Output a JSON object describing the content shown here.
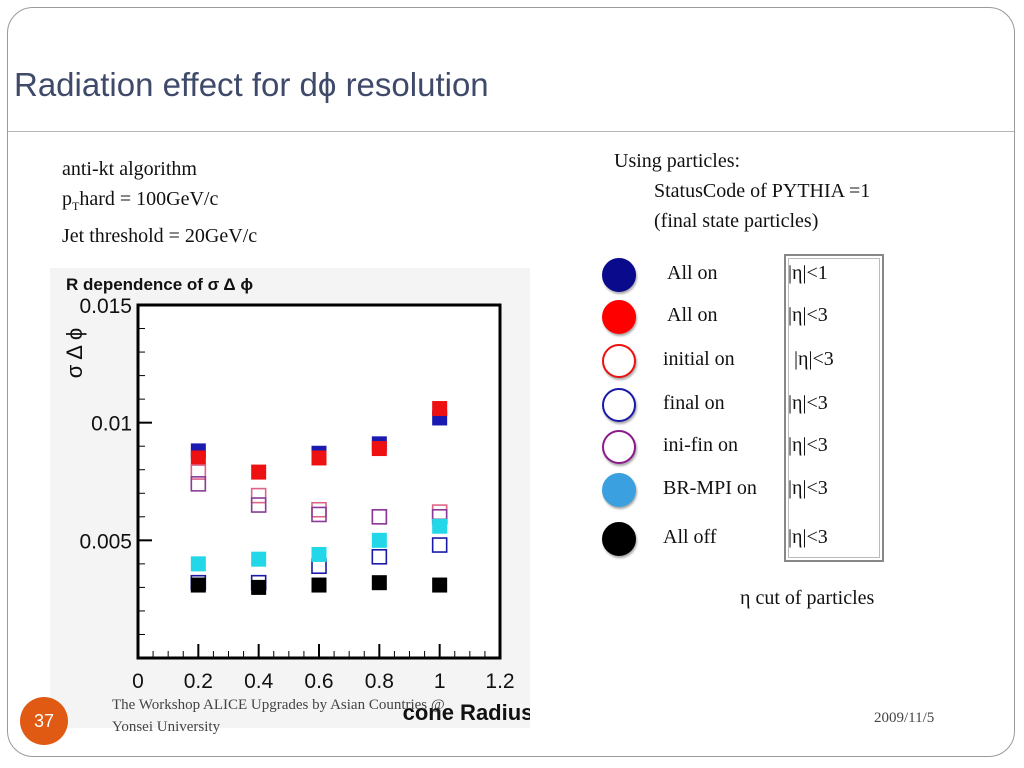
{
  "slide": {
    "title": "Radiation effect for dϕ resolution",
    "info_lines": [
      "anti-kt algorithm",
      "hard = 100GeV/c",
      "Jet threshold = 20GeV/c"
    ],
    "pt_symbol": "p",
    "pt_sub": "T",
    "using": [
      "Using particles:",
      "StatusCode of PYTHIA =1",
      "(final state particles)"
    ],
    "eta_note": "η cut of particles",
    "slide_number": "37",
    "footer_line1": "The Workshop ALICE Upgrades by Asian Countries @",
    "footer_line2": "Yonsei University",
    "date": "2009/11/5"
  },
  "legend": [
    {
      "label": "All on",
      "cut": "|η|<1",
      "fill": "#0a0a8c",
      "stroke": "#0a0a8c"
    },
    {
      "label": "All on",
      "cut": "|η|<3",
      "fill": "#ff0000",
      "stroke": "#ff0000"
    },
    {
      "label": "initial on",
      "cut": "|η|<3",
      "fill": "#ffffff",
      "stroke": "#ee1111"
    },
    {
      "label": "final   on",
      "cut": "|η|<3",
      "fill": "#ffffff",
      "stroke": "#1a1aa8"
    },
    {
      "label": "ini-fin  on",
      "cut": "|η|<3",
      "fill": "#ffffff",
      "stroke": "#8b1a8b"
    },
    {
      "label": "BR-MPI  on",
      "cut": "|η|<3",
      "fill": "#3aa0e0",
      "stroke": "#3aa0e0"
    },
    {
      "label": "All off",
      "cut": "|η|<3",
      "fill": "#000000",
      "stroke": "#000000"
    }
  ],
  "chart_data": {
    "type": "scatter",
    "title": "R dependence of σ Δ ϕ",
    "xlabel": "cone Radius",
    "ylabel": "σ Δ ϕ",
    "xlim": [
      0,
      1.2
    ],
    "ylim": [
      0,
      0.015
    ],
    "x_ticks": [
      "0",
      "0.2",
      "0.4",
      "0.6",
      "0.8",
      "1",
      "1.2"
    ],
    "y_ticks": [
      "0.005",
      "0.01",
      "0.015"
    ],
    "x": [
      0.2,
      0.4,
      0.6,
      0.8,
      1.0
    ],
    "series": [
      {
        "legend_index": 0,
        "color": "#1a1ab0",
        "filled": true,
        "values": [
          0.0088,
          null,
          0.0087,
          0.0091,
          0.0102
        ]
      },
      {
        "legend_index": 1,
        "color": "#ee1111",
        "filled": true,
        "values": [
          0.0085,
          0.0079,
          0.0085,
          0.0089,
          0.0106
        ]
      },
      {
        "legend_index": 2,
        "color": "#dd6688",
        "filled": false,
        "values": [
          0.0079,
          0.0069,
          0.0063,
          0.006,
          0.0062
        ]
      },
      {
        "legend_index": 4,
        "color": "#8b3a9a",
        "filled": false,
        "values": [
          0.0074,
          0.0065,
          0.0061,
          0.006,
          0.006
        ]
      },
      {
        "legend_index": 3,
        "color": "#1a1aa8",
        "filled": false,
        "values": [
          0.0032,
          0.0032,
          0.0039,
          0.0043,
          0.0048
        ]
      },
      {
        "legend_index": 5,
        "color": "#22d8e8",
        "filled": true,
        "values": [
          0.004,
          0.0042,
          0.0044,
          0.005,
          0.0056
        ]
      },
      {
        "legend_index": 6,
        "color": "#000000",
        "filled": true,
        "values": [
          0.0031,
          0.003,
          0.0031,
          0.0032,
          0.0031
        ]
      }
    ]
  }
}
